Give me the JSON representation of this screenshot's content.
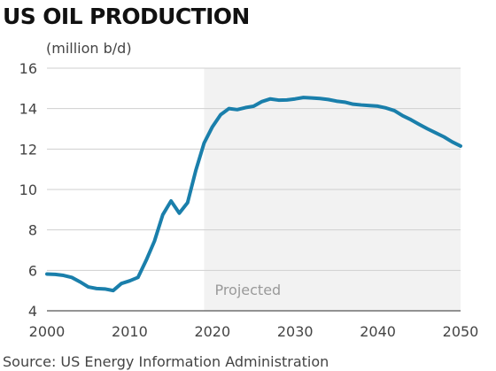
{
  "chart_data": {
    "type": "line",
    "title": "US OIL PRODUCTION",
    "ylabel": "(million b/d)",
    "xlabel": "",
    "source": "Source: US Energy Information Administration",
    "xlim": [
      2000,
      2050
    ],
    "ylim": [
      4,
      16
    ],
    "x_ticks": [
      2000,
      2010,
      2020,
      2030,
      2040,
      2050
    ],
    "y_ticks": [
      4,
      6,
      8,
      10,
      12,
      14,
      16
    ],
    "grid": true,
    "projected_region": {
      "label": "Projected",
      "x_start": 2019,
      "x_end": 2050,
      "color": "#f2f2f2"
    },
    "series": [
      {
        "color": "#1a7fab",
        "x": [
          2000,
          2001,
          2002,
          2003,
          2004,
          2005,
          2006,
          2007,
          2008,
          2009,
          2010,
          2011,
          2012,
          2013,
          2014,
          2015,
          2016,
          2017,
          2018,
          2019,
          2020,
          2021,
          2022,
          2023,
          2024,
          2025,
          2026,
          2027,
          2028,
          2029,
          2030,
          2031,
          2032,
          2033,
          2034,
          2035,
          2036,
          2037,
          2038,
          2039,
          2040,
          2041,
          2042,
          2043,
          2044,
          2045,
          2046,
          2047,
          2048,
          2049,
          2050
        ],
        "values": [
          5.82,
          5.8,
          5.75,
          5.65,
          5.43,
          5.18,
          5.1,
          5.08,
          5.0,
          5.35,
          5.48,
          5.65,
          6.5,
          7.45,
          8.75,
          9.43,
          8.83,
          9.35,
          10.95,
          12.3,
          13.1,
          13.7,
          14.0,
          13.95,
          14.05,
          14.12,
          14.35,
          14.48,
          14.42,
          14.43,
          14.48,
          14.55,
          14.53,
          14.5,
          14.45,
          14.37,
          14.32,
          14.22,
          14.18,
          14.15,
          14.12,
          14.03,
          13.9,
          13.65,
          13.45,
          13.22,
          13.0,
          12.8,
          12.6,
          12.35,
          12.15
        ]
      }
    ]
  }
}
